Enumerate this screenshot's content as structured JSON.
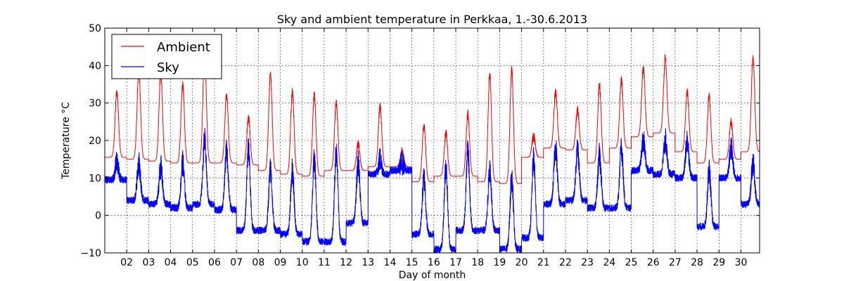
{
  "chart_data": {
    "type": "line",
    "title": "Sky and ambient temperature in Perkkaa, 1.-30.6.2013",
    "xlabel": "Day of month",
    "ylabel": "Temperature °C",
    "xlim": [
      1.0,
      30.85
    ],
    "ylim": [
      -10,
      50
    ],
    "x_ticks": [
      2,
      3,
      4,
      5,
      6,
      7,
      8,
      9,
      10,
      11,
      12,
      13,
      14,
      15,
      16,
      17,
      18,
      19,
      20,
      21,
      22,
      23,
      24,
      25,
      26,
      27,
      28,
      29,
      30
    ],
    "x_tick_labels": [
      "02",
      "03",
      "04",
      "05",
      "06",
      "07",
      "08",
      "09",
      "10",
      "11",
      "12",
      "13",
      "14",
      "15",
      "16",
      "17",
      "18",
      "19",
      "20",
      "21",
      "22",
      "23",
      "24",
      "25",
      "26",
      "27",
      "28",
      "29",
      "30"
    ],
    "y_ticks": [
      -10,
      0,
      10,
      20,
      30,
      40,
      50
    ],
    "y_tick_labels": [
      "−10",
      "0",
      "10",
      "20",
      "30",
      "40",
      "50"
    ],
    "grid": true,
    "legend_position": "top-left",
    "series": [
      {
        "name": "Ambient",
        "color": "#ff0000",
        "daily_min": [
          15.5,
          15,
          14.5,
          14,
          14,
          14,
          13.5,
          12,
          11,
          10.5,
          12,
          12,
          13,
          13,
          9,
          10.5,
          10.5,
          9,
          8.5,
          15.5,
          18,
          17.5,
          14,
          18,
          21,
          22,
          17,
          14,
          15,
          17
        ],
        "daily_max": [
          33,
          39,
          38,
          35,
          44,
          32,
          26,
          38,
          33,
          32,
          30,
          19,
          29,
          17,
          24,
          22,
          27,
          38,
          39,
          21,
          33,
          28,
          35,
          36,
          39,
          42,
          33,
          32,
          25,
          42
        ]
      },
      {
        "name": "Sky",
        "color": "#0000ff",
        "daily_min": [
          9.5,
          4,
          3,
          2,
          3,
          1.5,
          -4,
          -4,
          -5,
          -7,
          -7,
          -2,
          11,
          12,
          -5,
          -9,
          -4,
          -4,
          -9,
          -6,
          3,
          4,
          2,
          2,
          12,
          11,
          10,
          -3,
          10,
          3
        ],
        "daily_max": [
          14,
          14,
          13,
          14,
          20,
          17,
          18,
          12,
          12,
          15,
          17,
          14,
          15,
          14,
          10,
          13,
          17,
          12,
          10,
          15,
          18,
          18,
          16,
          18,
          20,
          20,
          20,
          12,
          18,
          14
        ]
      }
    ]
  }
}
